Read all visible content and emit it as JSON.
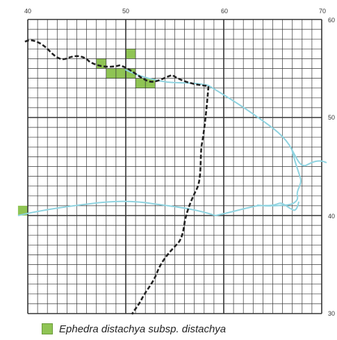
{
  "map": {
    "x_ticks": [
      "40",
      "50",
      "60",
      "70"
    ],
    "y_ticks": [
      "60",
      "50",
      "40",
      "30"
    ],
    "cell_color": "#8fc454",
    "occupied_cells": [
      {
        "col": 7,
        "row": 4
      },
      {
        "col": 10,
        "row": 3
      },
      {
        "col": 8,
        "row": 5
      },
      {
        "col": 9,
        "row": 5
      },
      {
        "col": 10,
        "row": 5
      },
      {
        "col": 11,
        "row": 6
      },
      {
        "col": 12,
        "row": 6
      },
      {
        "col": -1,
        "row": 19
      }
    ],
    "grid_color": "#333333",
    "river_color": "#8fd3e0",
    "boundary_color": "#222222"
  },
  "legend": {
    "label": "Ephedra distachya subsp. distachya",
    "swatch_color": "#8fc454"
  }
}
